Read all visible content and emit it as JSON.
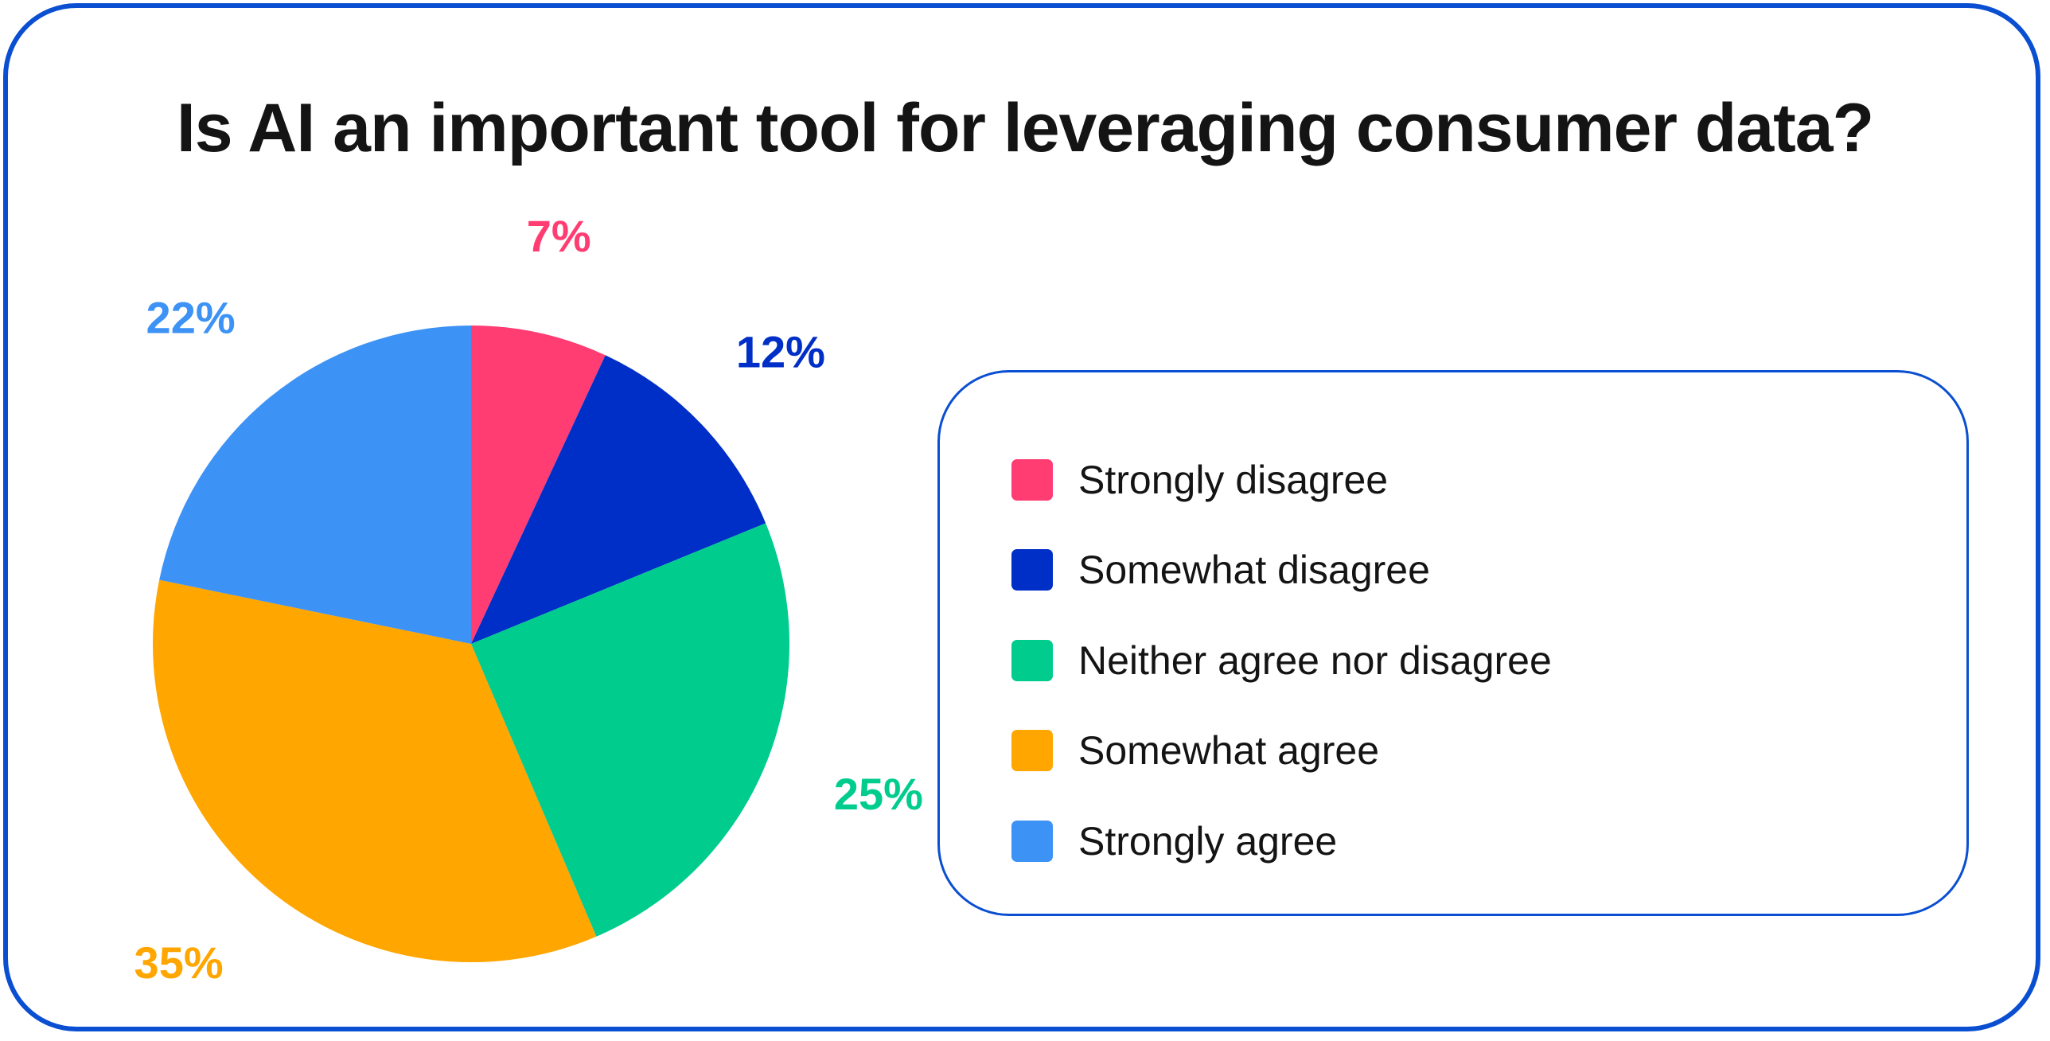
{
  "chart_data": {
    "type": "pie",
    "title": "Is AI an important tool for leveraging consumer data?",
    "categories": [
      "Strongly disagree",
      "Somewhat disagree",
      "Neither agree nor disagree",
      "Somewhat agree",
      "Strongly agree"
    ],
    "values": [
      7,
      12,
      25,
      35,
      22
    ],
    "labels": [
      "7%",
      "12%",
      "25%",
      "35%",
      "22%"
    ],
    "colors": [
      "#ff3d73",
      "#002fc7",
      "#00cc8e",
      "#ffa600",
      "#3d92f5"
    ],
    "legend_position": "right",
    "start": "top, clockwise"
  },
  "colors": {
    "border": "#0a4fd1",
    "title_text": "#141414"
  }
}
